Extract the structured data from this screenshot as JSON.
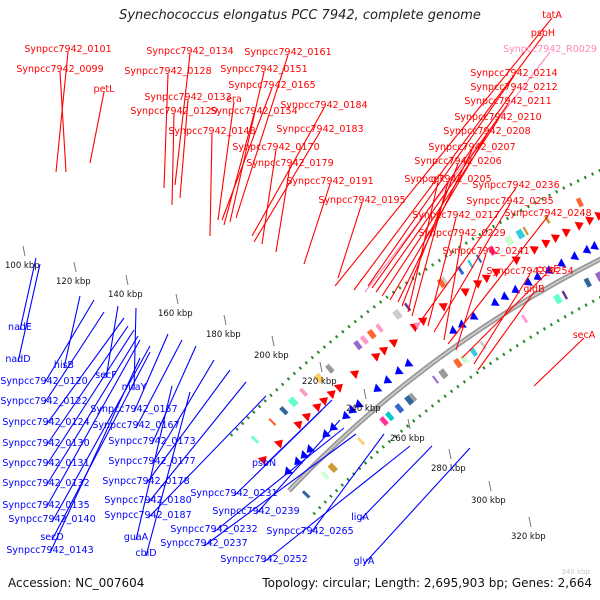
{
  "title": "Synechococcus elongatus PCC 7942, complete genome",
  "footer": {
    "accession": "Accession: NC_007604",
    "summary": "Topology: circular; Length: 2,695,903 bp; Genes: 2,664",
    "watermark": "340 kbp"
  },
  "colors": {
    "forward_gene": "#ff0000",
    "reverse_gene": "#0000ff",
    "pseudo_gene": "#ff88bb",
    "backbone": "#999999",
    "gc_dots": "#2a8a2a"
  },
  "scale_ticks": [
    {
      "label": "100 kbp"
    },
    {
      "label": "120 kbp"
    },
    {
      "label": "140 kbp"
    },
    {
      "label": "160 kbp"
    },
    {
      "label": "180 kbp"
    },
    {
      "label": "200 kbp"
    },
    {
      "label": "220 kbp"
    },
    {
      "label": "240 kbp"
    },
    {
      "label": "260 kbp"
    },
    {
      "label": "280 kbp"
    },
    {
      "label": "300 kbp"
    },
    {
      "label": "320 kbp"
    }
  ],
  "forward_labels": [
    {
      "text": "Synpcc7942_0101"
    },
    {
      "text": "Synpcc7942_0099"
    },
    {
      "text": "Synpcc7942_0134"
    },
    {
      "text": "Synpcc7942_0128"
    },
    {
      "text": "petL"
    },
    {
      "text": "Synpcc7942_0133"
    },
    {
      "text": "Synpcc7942_0129"
    },
    {
      "text": "Synpcc7942_0161"
    },
    {
      "text": "Synpcc7942_0151"
    },
    {
      "text": "Synpcc7942_0165"
    },
    {
      "text": "era"
    },
    {
      "text": "Synpcc7942_0154"
    },
    {
      "text": "Synpcc7942_0148"
    },
    {
      "text": "Synpcc7942_0184"
    },
    {
      "text": "Synpcc7942_0183"
    },
    {
      "text": "Synpcc7942_0170"
    },
    {
      "text": "Synpcc7942_0179"
    },
    {
      "text": "Synpcc7942_0191"
    },
    {
      "text": "Synpcc7942_0195"
    },
    {
      "text": "tatA"
    },
    {
      "text": "psbH"
    },
    {
      "text": "Synpcc7942_R0029"
    },
    {
      "text": "Synpcc7942_0214"
    },
    {
      "text": "Synpcc7942_0212"
    },
    {
      "text": "Synpcc7942_0211"
    },
    {
      "text": "Synpcc7942_0210"
    },
    {
      "text": "Synpcc7942_0208"
    },
    {
      "text": "Synpcc7942_0207"
    },
    {
      "text": "Synpcc7942_0206"
    },
    {
      "text": "glk"
    },
    {
      "text": "Synpcc7942_0205"
    },
    {
      "text": "Synpcc7942_0236"
    },
    {
      "text": "Synpcc7942_0235"
    },
    {
      "text": "Synpcc7942_0217"
    },
    {
      "text": "Synpcc7942_0248"
    },
    {
      "text": "Synpcc7942_0229"
    },
    {
      "text": "Synpcc7942_0241"
    },
    {
      "text": "coaE"
    },
    {
      "text": "Synpcc7942_0254"
    },
    {
      "text": "gidB"
    },
    {
      "text": "secA"
    }
  ],
  "reverse_labels": [
    {
      "text": "nadE"
    },
    {
      "text": "nadD"
    },
    {
      "text": "hisB"
    },
    {
      "text": "Synpcc7942_0120"
    },
    {
      "text": "secF"
    },
    {
      "text": "mraY"
    },
    {
      "text": "Synpcc7942_0122"
    },
    {
      "text": "Synpcc7942_0124"
    },
    {
      "text": "Synpcc7942_0157"
    },
    {
      "text": "Synpcc7942_0167"
    },
    {
      "text": "Synpcc7942_0130"
    },
    {
      "text": "Synpcc7942_0173"
    },
    {
      "text": "Synpcc7942_0131"
    },
    {
      "text": "Synpcc7942_0177"
    },
    {
      "text": "Synpcc7942_0178"
    },
    {
      "text": "Synpcc7942_0132"
    },
    {
      "text": "Synpcc7942_0135"
    },
    {
      "text": "Synpcc7942_0180"
    },
    {
      "text": "Synpcc7942_0140"
    },
    {
      "text": "Synpcc7942_0187"
    },
    {
      "text": "secD"
    },
    {
      "text": "guaA"
    },
    {
      "text": "Synpcc7942_0143"
    },
    {
      "text": "cbiD"
    },
    {
      "text": "psbN"
    },
    {
      "text": "Synpcc7942_0231"
    },
    {
      "text": "Synpcc7942_0239"
    },
    {
      "text": "Synpcc7942_0232"
    },
    {
      "text": "Synpcc7942_0237"
    },
    {
      "text": "Synpcc7942_0265"
    },
    {
      "text": "Synpcc7942_0252"
    },
    {
      "text": "ligA"
    },
    {
      "text": "glyA"
    }
  ]
}
